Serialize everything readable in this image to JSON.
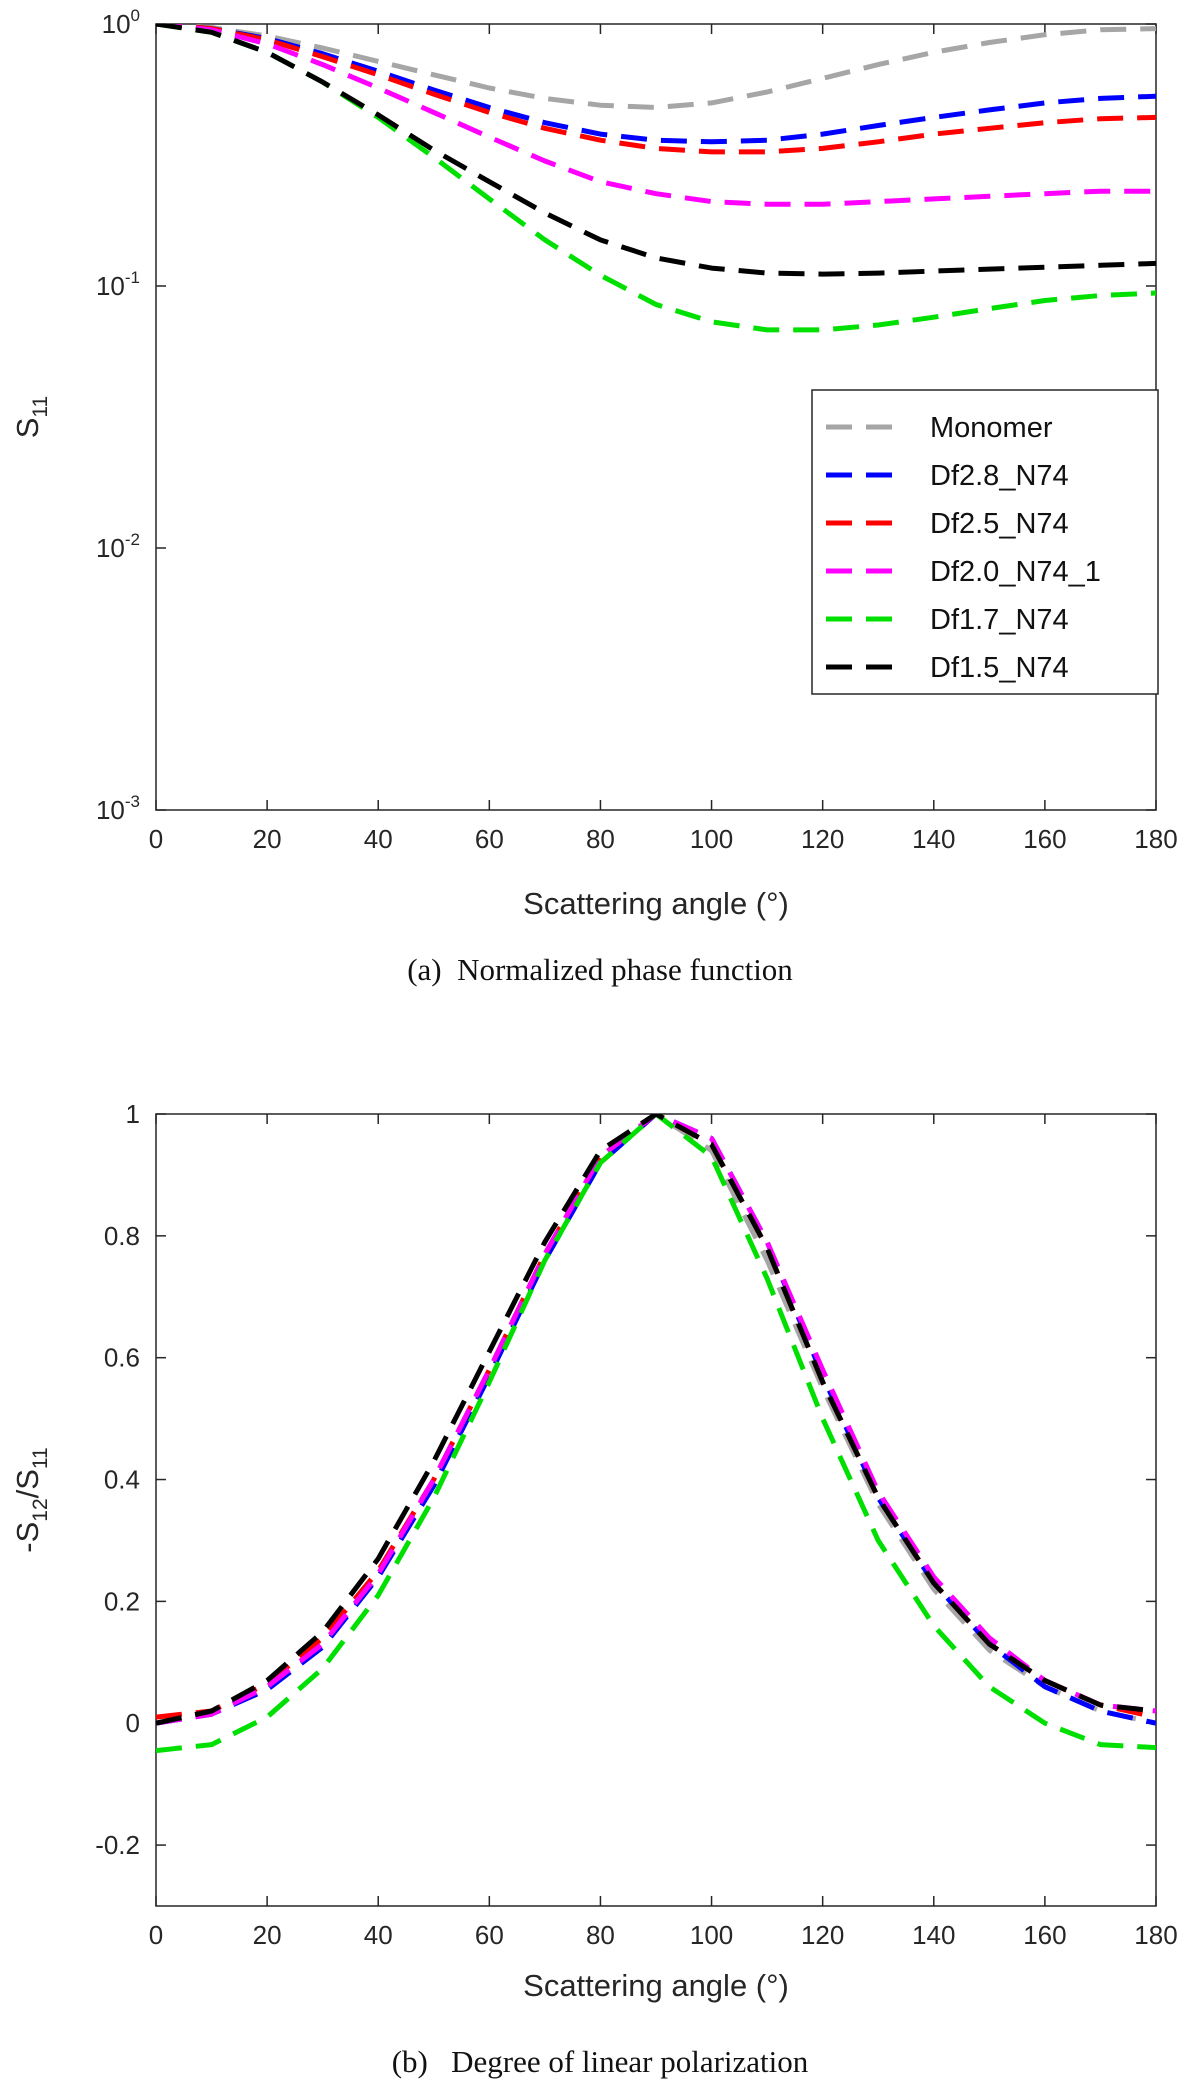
{
  "chart_data": [
    {
      "type": "line",
      "caption": "(a)  Normalized phase function",
      "xlabel": "Scattering angle (°)",
      "ylabel": {
        "main": "S",
        "sub": "11"
      },
      "y_scale": "log",
      "xlim": [
        0,
        180
      ],
      "ylim": [
        0.001,
        1
      ],
      "x_ticks": [
        0,
        20,
        40,
        60,
        80,
        100,
        120,
        140,
        160,
        180
      ],
      "y_ticks": [
        {
          "value": 1,
          "base": "10",
          "exp": "0"
        },
        {
          "value": 0.1,
          "base": "10",
          "exp": "-1"
        },
        {
          "value": 0.01,
          "base": "10",
          "exp": "-2"
        },
        {
          "value": 0.001,
          "base": "10",
          "exp": "-3"
        }
      ],
      "grid": false,
      "legend_position": "right-center",
      "x": [
        0,
        10,
        20,
        30,
        40,
        50,
        60,
        70,
        80,
        90,
        100,
        110,
        120,
        130,
        140,
        150,
        160,
        170,
        180
      ],
      "series": [
        {
          "name": "Monomer",
          "color": "#a6a6a6",
          "values": [
            1.0,
            0.97,
            0.9,
            0.81,
            0.72,
            0.64,
            0.57,
            0.52,
            0.49,
            0.48,
            0.5,
            0.55,
            0.62,
            0.7,
            0.78,
            0.85,
            0.91,
            0.95,
            0.96
          ]
        },
        {
          "name": "Df2.8_N74",
          "color": "#0000ff",
          "values": [
            1.0,
            0.96,
            0.88,
            0.77,
            0.66,
            0.56,
            0.48,
            0.42,
            0.38,
            0.36,
            0.355,
            0.36,
            0.38,
            0.41,
            0.44,
            0.47,
            0.5,
            0.52,
            0.53
          ]
        },
        {
          "name": "Df2.5_N74",
          "color": "#ff0000",
          "values": [
            1.0,
            0.96,
            0.87,
            0.75,
            0.64,
            0.54,
            0.46,
            0.4,
            0.36,
            0.335,
            0.325,
            0.325,
            0.335,
            0.355,
            0.38,
            0.4,
            0.42,
            0.435,
            0.44
          ]
        },
        {
          "name": "Df2.0_N74_1",
          "color": "#ff00ff",
          "values": [
            1.0,
            0.95,
            0.84,
            0.7,
            0.57,
            0.46,
            0.37,
            0.3,
            0.25,
            0.225,
            0.21,
            0.205,
            0.205,
            0.21,
            0.215,
            0.22,
            0.225,
            0.23,
            0.23
          ]
        },
        {
          "name": "Df1.7_N74",
          "color": "#00e000",
          "values": [
            1.0,
            0.93,
            0.78,
            0.6,
            0.44,
            0.31,
            0.215,
            0.15,
            0.11,
            0.085,
            0.073,
            0.068,
            0.068,
            0.071,
            0.076,
            0.082,
            0.088,
            0.092,
            0.094
          ]
        },
        {
          "name": "Df1.5_N74",
          "color": "#000000",
          "values": [
            1.0,
            0.93,
            0.78,
            0.6,
            0.45,
            0.33,
            0.25,
            0.19,
            0.15,
            0.128,
            0.117,
            0.112,
            0.111,
            0.112,
            0.114,
            0.116,
            0.118,
            0.12,
            0.122
          ]
        }
      ]
    },
    {
      "type": "line",
      "caption": "(b)   Degree of linear polarization",
      "xlabel": "Scattering angle (°)",
      "ylabel": {
        "prefix": "-S",
        "sub1": "12",
        "mid": "/S",
        "sub2": "11"
      },
      "y_scale": "linear",
      "xlim": [
        0,
        180
      ],
      "ylim": [
        -0.3,
        1
      ],
      "x_ticks": [
        0,
        20,
        40,
        60,
        80,
        100,
        120,
        140,
        160,
        180
      ],
      "y_ticks": [
        1,
        0.8,
        0.6,
        0.4,
        0.2,
        0,
        -0.2
      ],
      "grid": false,
      "x": [
        0,
        10,
        20,
        30,
        40,
        50,
        60,
        70,
        80,
        90,
        100,
        110,
        120,
        130,
        140,
        150,
        160,
        170,
        180
      ],
      "series": [
        {
          "name": "Monomer",
          "color": "#a6a6a6",
          "values": [
            0.0,
            0.015,
            0.06,
            0.13,
            0.24,
            0.4,
            0.58,
            0.77,
            0.93,
            1.0,
            0.94,
            0.76,
            0.55,
            0.36,
            0.22,
            0.12,
            0.06,
            0.02,
            0.0
          ]
        },
        {
          "name": "Df2.8_N74",
          "color": "#0000ff",
          "values": [
            0.0,
            0.015,
            0.055,
            0.125,
            0.24,
            0.39,
            0.57,
            0.76,
            0.92,
            1.0,
            0.96,
            0.79,
            0.57,
            0.37,
            0.23,
            0.13,
            0.06,
            0.02,
            0.0
          ]
        },
        {
          "name": "Df2.5_N74",
          "color": "#ff0000",
          "values": [
            0.01,
            0.02,
            0.065,
            0.14,
            0.25,
            0.4,
            0.58,
            0.77,
            0.93,
            1.0,
            0.95,
            0.78,
            0.56,
            0.37,
            0.23,
            0.13,
            0.07,
            0.03,
            0.01
          ]
        },
        {
          "name": "Df2.0_N74_1",
          "color": "#ff00ff",
          "values": [
            0.0,
            0.015,
            0.06,
            0.13,
            0.245,
            0.4,
            0.58,
            0.77,
            0.93,
            1.0,
            0.96,
            0.79,
            0.58,
            0.38,
            0.24,
            0.14,
            0.07,
            0.03,
            0.02
          ]
        },
        {
          "name": "Df1.7_N74",
          "color": "#00e000",
          "values": [
            -0.045,
            -0.035,
            0.01,
            0.09,
            0.21,
            0.37,
            0.56,
            0.76,
            0.92,
            1.0,
            0.93,
            0.73,
            0.5,
            0.3,
            0.16,
            0.06,
            0.0,
            -0.035,
            -0.04
          ]
        },
        {
          "name": "Df1.5_N74",
          "color": "#000000",
          "values": [
            0.0,
            0.02,
            0.07,
            0.15,
            0.27,
            0.43,
            0.61,
            0.79,
            0.94,
            1.0,
            0.95,
            0.78,
            0.56,
            0.37,
            0.23,
            0.13,
            0.07,
            0.03,
            0.02
          ]
        }
      ]
    }
  ]
}
